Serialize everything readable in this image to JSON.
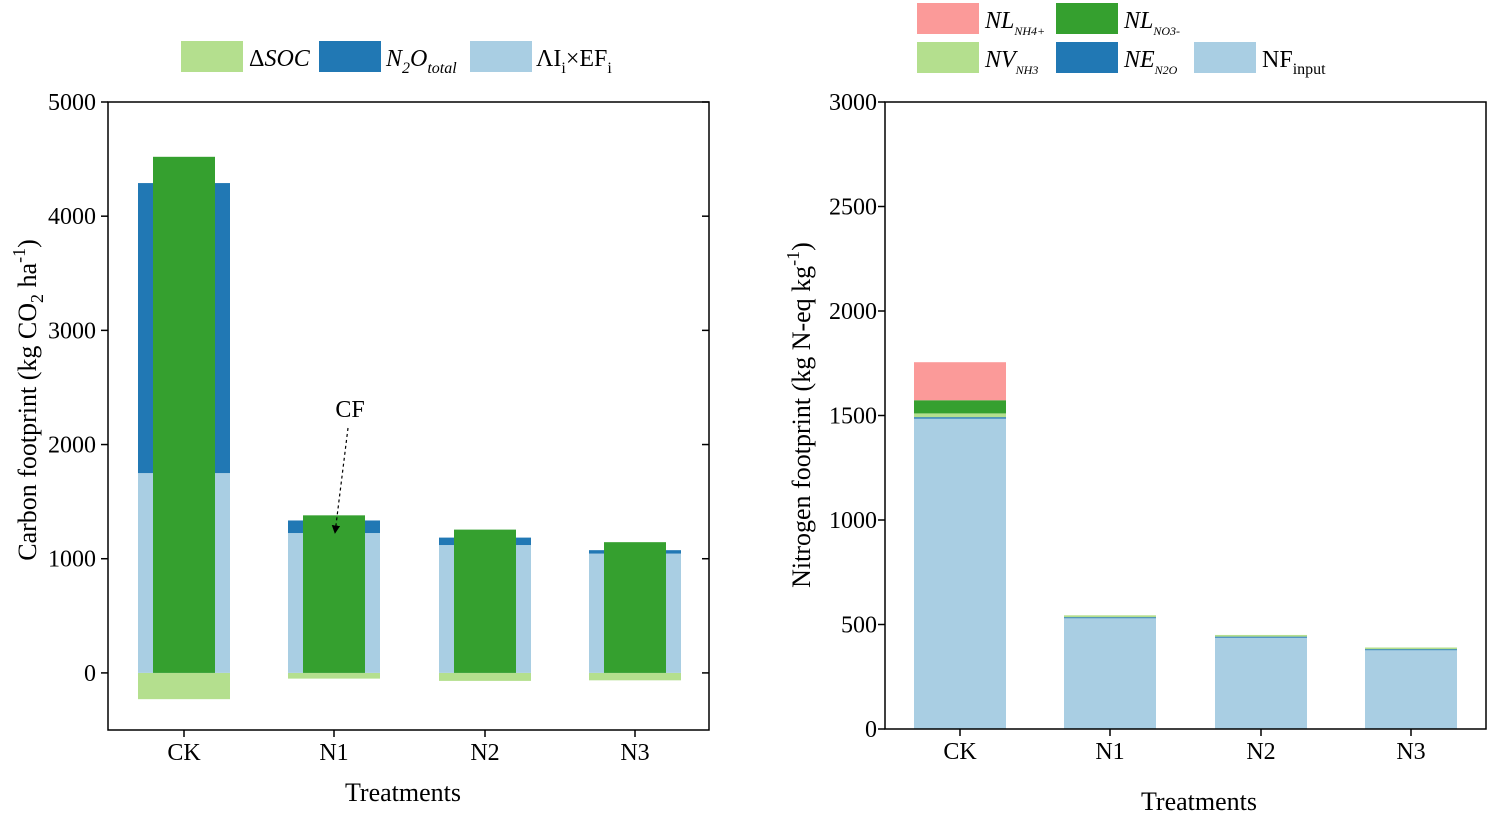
{
  "colors": {
    "soc": "#b4df8e",
    "n2o": "#2178b4",
    "ai_ef": "#a9cee3",
    "cf": "#35a02f",
    "nl_nh4": "#fb9a99",
    "nl_no3": "#35a02f",
    "nv_nh3": "#b4df8e",
    "ne_n2o": "#2178b4",
    "nf_input": "#a9cee3"
  },
  "chart_data": [
    {
      "type": "bar",
      "subtype": "stacked-with-overlay",
      "xlabel": "Treatments",
      "ylabel": "Carbon footprint (kg CO2 ha-1)",
      "ylabel_parts": {
        "main": "Carbon footprint (kg CO",
        "sub": "2",
        "mid": " ha",
        "sup": "-1",
        "end": ")"
      },
      "categories": [
        "CK",
        "N1",
        "N2",
        "N3"
      ],
      "ylim": [
        -500,
        5000
      ],
      "yticks": [
        "0",
        "1000",
        "2000",
        "3000",
        "4000",
        "5000"
      ],
      "ytick_values": [
        0,
        1000,
        2000,
        3000,
        4000,
        5000
      ],
      "legend": [
        {
          "key": "soc",
          "prefix": "Δ",
          "main": "SOC",
          "sub": ""
        },
        {
          "key": "n2o",
          "prefix": "",
          "main": "N",
          "sub1": "2",
          "main2": "O",
          "sub": "total"
        },
        {
          "key": "ai_ef",
          "prefix": "",
          "main": "ΛI",
          "sub1": "i",
          "main2": "×EF",
          "sub": "i"
        }
      ],
      "series": [
        {
          "name": "ΔSOC",
          "key": "soc",
          "values": [
            -230,
            -50,
            -70,
            -65
          ]
        },
        {
          "name": "ΛIi×EFi",
          "key": "ai_ef",
          "values": [
            1750,
            1225,
            1120,
            1045
          ]
        },
        {
          "name": "N2Ototal",
          "key": "n2o",
          "values": [
            2540,
            110,
            65,
            30
          ]
        }
      ],
      "overlay": {
        "name": "CF",
        "key": "cf",
        "values": [
          4520,
          1380,
          1255,
          1145
        ]
      },
      "annotation": {
        "text": "CF",
        "target_category": "N1"
      }
    },
    {
      "type": "bar",
      "subtype": "stacked",
      "xlabel": "Treatments",
      "ylabel": "Nitrogen footprint (kg N-eq kg-1)",
      "ylabel_parts": {
        "main": "Nitrogen footprint (kg N-eq kg",
        "sup": "-1",
        "end": ")"
      },
      "categories": [
        "CK",
        "N1",
        "N2",
        "N3"
      ],
      "ylim": [
        0,
        3000
      ],
      "yticks": [
        "0",
        "500",
        "1000",
        "1500",
        "2000",
        "2500",
        "3000"
      ],
      "ytick_values": [
        0,
        500,
        1000,
        1500,
        2000,
        2500,
        3000
      ],
      "legend": [
        {
          "key": "nl_nh4",
          "main": "NL",
          "sub": "NH4+"
        },
        {
          "key": "nl_no3",
          "main": "NL",
          "sub": "NO3-"
        },
        {
          "key": "nv_nh3",
          "main": "NV",
          "sub": "NH3"
        },
        {
          "key": "ne_n2o",
          "main": "NE",
          "sub": "N2O"
        },
        {
          "key": "nf_input",
          "main": "NF",
          "sub": "input"
        }
      ],
      "series": [
        {
          "name": "NFinput",
          "key": "nf_input",
          "values": [
            1485,
            533,
            440,
            380
          ]
        },
        {
          "name": "NEN2O",
          "key": "ne_n2o",
          "values": [
            7,
            2,
            2,
            2
          ]
        },
        {
          "name": "NVNH3",
          "key": "nv_nh3",
          "values": [
            18,
            9,
            8,
            8
          ]
        },
        {
          "name": "NLNO3-",
          "key": "nl_no3",
          "values": [
            63,
            0,
            0,
            0
          ]
        },
        {
          "name": "NLNH4+",
          "key": "nl_nh4",
          "values": [
            182,
            0,
            0,
            0
          ]
        }
      ]
    }
  ]
}
